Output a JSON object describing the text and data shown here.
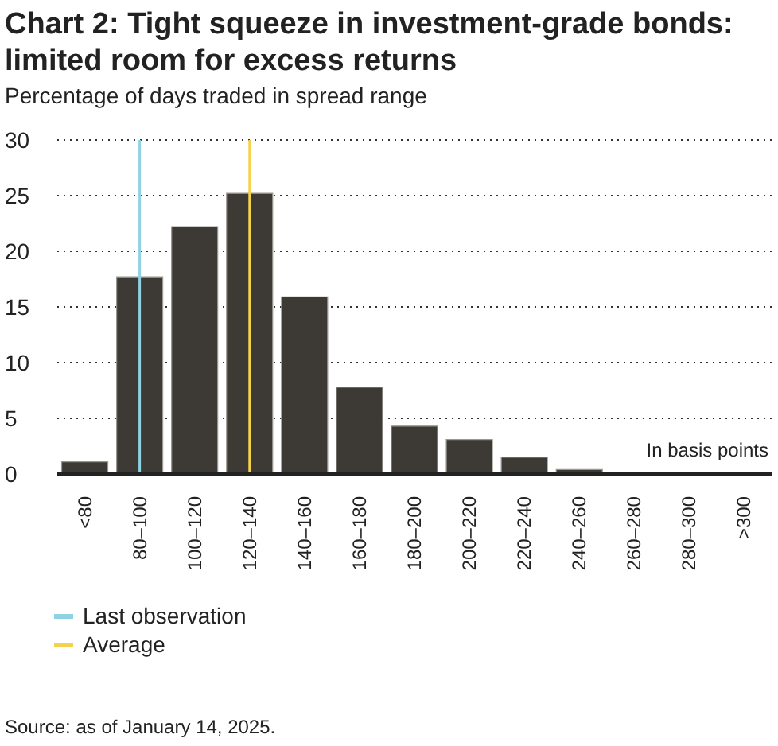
{
  "chart_data": {
    "type": "bar",
    "title": "Chart 2: Tight squeeze in investment-grade bonds: limited room for excess returns",
    "subtitle": "Percentage of days traded in spread range",
    "categories": [
      "<80",
      "80–100",
      "100–120",
      "120–140",
      "140–160",
      "160–180",
      "180–200",
      "200–220",
      "220–240",
      "240–260",
      "260–280",
      "280–300",
      ">300"
    ],
    "values": [
      1.1,
      17.7,
      22.2,
      25.2,
      15.9,
      7.8,
      4.3,
      3.1,
      1.5,
      0.4,
      0.1,
      0.1,
      0.1
    ],
    "color": "#3d3a35",
    "ylim": [
      0,
      30
    ],
    "yticks": [
      0,
      5,
      10,
      15,
      20,
      25,
      30
    ],
    "grid": "y",
    "ref_lines": [
      {
        "axis": "x",
        "value": "80–100",
        "label": "Last observation",
        "color": "#8fd3e3"
      },
      {
        "axis": "x",
        "value": "120–140",
        "label": "Average",
        "color": "#f5d24a"
      }
    ],
    "legend": "bottom left",
    "annotations": [
      "In basis points",
      "Source: as of January 14, 2025."
    ]
  }
}
